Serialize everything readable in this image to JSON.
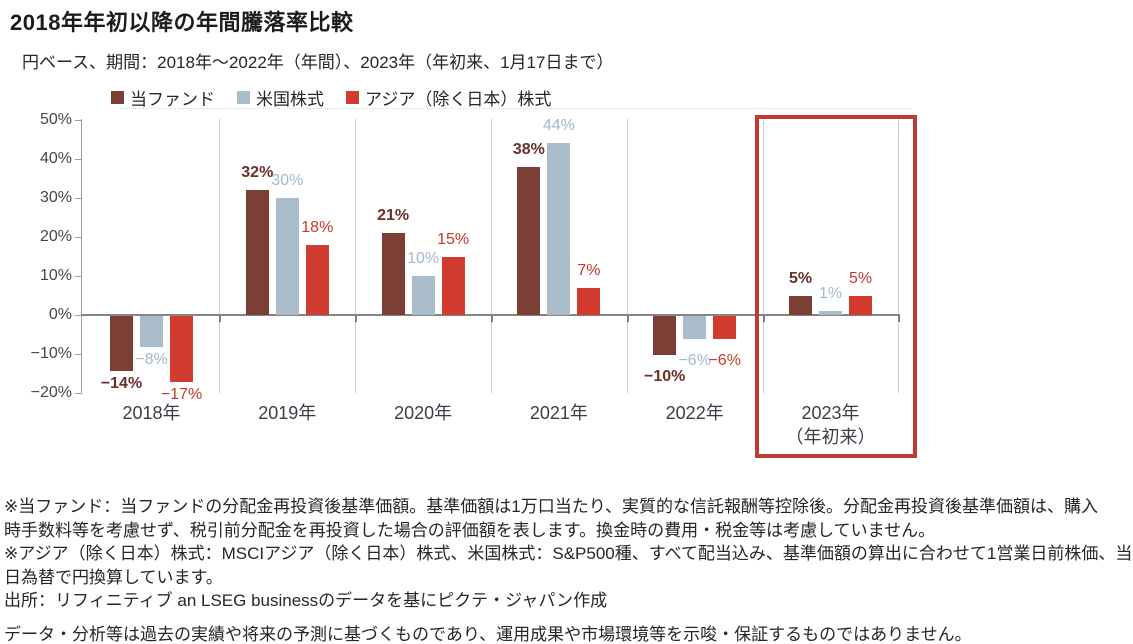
{
  "subtitle": "円ベース、期間：2018年～2022年（年間）、2023年（年初来、1月17日まで）",
  "chart_data": {
    "type": "bar",
    "title": "2018年年初以降の年間騰落率比較",
    "categories": [
      "2018年",
      "2019年",
      "2020年",
      "2021年",
      "2022年",
      "2023年"
    ],
    "category_sublabels": [
      "",
      "",
      "",
      "",
      "",
      "（年初来）"
    ],
    "series": [
      {
        "name": "当ファンド",
        "color": "#7b3f36",
        "label_color": "#693129",
        "values": [
          -14,
          32,
          21,
          38,
          -10,
          5
        ]
      },
      {
        "name": "米国株式",
        "color": "#a9bcca",
        "label_color": "#a4b9cb",
        "values": [
          -8,
          30,
          10,
          44,
          -6,
          1
        ]
      },
      {
        "name": "アジア（除く日本）株式",
        "color": "#d23b30",
        "label_color": "#c5392b",
        "values": [
          -17,
          18,
          15,
          7,
          -6,
          5
        ]
      }
    ],
    "ylim": [
      -20,
      50
    ],
    "yticks": [
      50,
      40,
      30,
      20,
      10,
      0,
      -10,
      -20
    ],
    "ytick_suffix": "%",
    "value_suffix": "%",
    "grid": "vertical-group-separators",
    "legend_position": "top",
    "highlight": {
      "category": "2023年",
      "group_index": 5,
      "color": "#bf3c34"
    }
  },
  "notes": {
    "lines": [
      "※当ファンド：当ファンドの分配金再投資後基準価額。基準価額は1万口当たり、実質的な信託報酬等控除後。分配金再投資後基準価額は、購入",
      "時手数料等を考慮せず、税引前分配金を再投資した場合の評価額を表します。換金時の費用・税金等は考慮していません。",
      "※アジア（除く日本）株式：MSCIアジア（除く日本）株式、米国株式：S&P500種、すべて配当込み、基準価額の算出に合わせて1営業日前株価、当",
      "日為替で円換算しています。",
      "出所：リフィニティブ an LSEG businessのデータを基にピクテ・ジャパン作成"
    ]
  },
  "disclaimer": "データ・分析等は過去の実績や将来の予測に基づくものであり、運用成果や市場環境等を示唆・保証するものではありません。"
}
